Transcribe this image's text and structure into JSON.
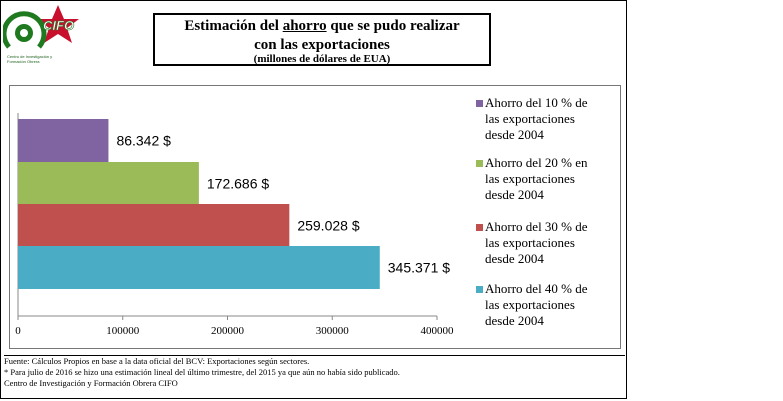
{
  "logo": {
    "text": "CIFO",
    "caption": "Centro de Investigación y Formación Obrera"
  },
  "title": {
    "line1_before": "Estimación del ",
    "line1_underlined": "ahorro",
    "line1_after": " que se pudo realizar",
    "line2": "con las exportaciones",
    "line3": "(millones de dólares de EUA)"
  },
  "chart_data": {
    "type": "bar",
    "orientation": "horizontal",
    "categories": [
      "Ahorro del 10 % de las exportaciones desde 2004",
      "Ahorro del 20 % en las exportaciones desde 2004",
      "Ahorro del 30 % de las exportaciones desde 2004",
      "Ahorro del 40 % de las exportaciones desde 2004"
    ],
    "values": [
      86342,
      172686,
      259028,
      345371
    ],
    "value_labels": [
      "86.342 $",
      "172.686 $",
      "259.028 $",
      "345.371 $"
    ],
    "colors": [
      "#8064a2",
      "#9bbb59",
      "#c0504d",
      "#4bacc6"
    ],
    "xlim": [
      0,
      400000
    ],
    "xticks": [
      0,
      100000,
      200000,
      300000,
      400000
    ],
    "xtick_labels": [
      "0",
      "100000",
      "200000",
      "300000",
      "400000"
    ],
    "legend_position": "right",
    "grid": false
  },
  "legend": [
    {
      "line1": "Ahorro del 10 % de",
      "line2": "las exportaciones",
      "line3": "desde 2004",
      "color": "#8064a2"
    },
    {
      "line1": "Ahorro del 20 % en",
      "line2": "las exportaciones",
      "line3": "desde 2004",
      "color": "#9bbb59"
    },
    {
      "line1": "Ahorro del 30 % de",
      "line2": "las exportaciones",
      "line3": "desde 2004",
      "color": "#c0504d"
    },
    {
      "line1": "Ahorro del 40 % de",
      "line2": "las exportaciones",
      "line3": "desde 2004",
      "color": "#4bacc6"
    }
  ],
  "footer": {
    "line1": "Fuente: Cálculos Propios en base a la data oficial del BCV: Exportaciones según sectores.",
    "line2": "* Para julio de 2016 se hizo una estimación lineal del último trimestre, del 2015 ya que aún no había sido publicado.",
    "line3": "Centro de Investigación y Formación Obrera CIFO"
  }
}
